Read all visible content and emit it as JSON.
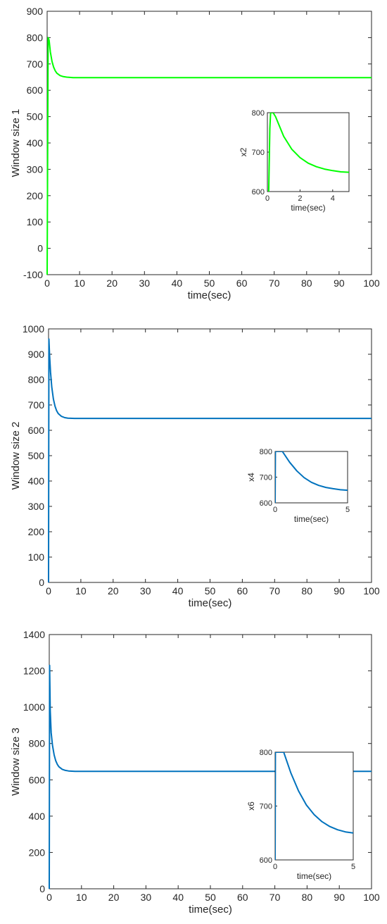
{
  "chart_data": [
    {
      "type": "line",
      "xlabel": "time(sec)",
      "ylabel": "Window size 1",
      "xlim": [
        0,
        100
      ],
      "ylim": [
        -100,
        900
      ],
      "xticks": [
        0,
        10,
        20,
        30,
        40,
        50,
        60,
        70,
        80,
        90,
        100
      ],
      "yticks": [
        -100,
        0,
        100,
        200,
        300,
        400,
        500,
        600,
        700,
        800,
        900
      ],
      "series": [
        {
          "color": "#00ff00",
          "x": [
            0,
            0.3,
            0.6,
            1,
            1.5,
            2,
            2.5,
            3,
            4,
            5,
            6,
            8,
            10,
            20,
            30,
            40,
            50,
            60,
            70,
            80,
            90,
            100
          ],
          "y": [
            -100,
            800,
            790,
            745,
            710,
            688,
            674,
            665,
            656,
            652,
            650,
            648,
            648,
            648,
            648,
            648,
            648,
            648,
            648,
            648,
            648,
            648
          ]
        }
      ],
      "inset": {
        "ylabel": "x2",
        "xlabel": "time(sec)",
        "xlim": [
          0,
          5
        ],
        "ylim": [
          600,
          800
        ],
        "xticks": [
          0,
          2,
          4
        ],
        "yticks": [
          600,
          700,
          800
        ],
        "series": [
          {
            "color": "#00ff00",
            "x": [
              0.08,
              0.15,
              0.2,
              0.35,
              0.5,
              0.75,
              1,
              1.5,
              2,
              2.5,
              3,
              3.5,
              4,
              4.5,
              5
            ],
            "y": [
              600,
              760,
              800,
              800,
              790,
              765,
              740,
              707,
              686,
              672,
              663,
              657,
              653,
              650,
              649
            ]
          }
        ]
      }
    },
    {
      "type": "line",
      "xlabel": "time(sec)",
      "ylabel": "Window size 2",
      "xlim": [
        0,
        100
      ],
      "ylim": [
        0,
        1000
      ],
      "xticks": [
        0,
        10,
        20,
        30,
        40,
        50,
        60,
        70,
        80,
        90,
        100
      ],
      "yticks": [
        0,
        100,
        200,
        300,
        400,
        500,
        600,
        700,
        800,
        900,
        1000
      ],
      "series": [
        {
          "color": "#0072bd",
          "x": [
            0,
            0.1,
            0.3,
            0.6,
            1,
            1.5,
            2,
            2.5,
            3,
            4,
            5,
            6,
            8,
            10,
            20,
            30,
            40,
            50,
            60,
            70,
            80,
            90,
            100
          ],
          "y": [
            0,
            960,
            900,
            830,
            770,
            723,
            695,
            677,
            666,
            655,
            650,
            648,
            647,
            647,
            647,
            647,
            647,
            647,
            647,
            647,
            647,
            647,
            647
          ]
        }
      ],
      "inset": {
        "ylabel": "x4",
        "xlabel": "time(sec)",
        "xlim": [
          0,
          5
        ],
        "ylim": [
          600,
          800
        ],
        "xticks": [
          0,
          5
        ],
        "yticks": [
          600,
          700,
          800
        ],
        "series": [
          {
            "color": "#0072bd",
            "x": [
              0,
              0.02,
              0.5,
              1,
              1.5,
              2,
              2.5,
              3,
              3.5,
              4,
              4.5,
              5
            ],
            "y": [
              600,
              800,
              800,
              758,
              724,
              698,
              680,
              668,
              660,
              655,
              651,
              649
            ]
          }
        ]
      }
    },
    {
      "type": "line",
      "xlabel": "time(sec)",
      "ylabel": "Window size 3",
      "xlim": [
        0,
        100
      ],
      "ylim": [
        0,
        1400
      ],
      "xticks": [
        0,
        10,
        20,
        30,
        40,
        50,
        60,
        70,
        80,
        90,
        100
      ],
      "yticks": [
        0,
        200,
        400,
        600,
        800,
        1000,
        1200,
        1400
      ],
      "series": [
        {
          "color": "#0072bd",
          "x": [
            0,
            0.1,
            0.3,
            0.6,
            1,
            1.5,
            2,
            2.5,
            3,
            4,
            5,
            6,
            8,
            10,
            20,
            30,
            40,
            50,
            60,
            70,
            80,
            90,
            100
          ],
          "y": [
            0,
            1230,
            980,
            860,
            790,
            738,
            705,
            685,
            672,
            658,
            652,
            649,
            647,
            647,
            647,
            647,
            647,
            647,
            647,
            647,
            647,
            647,
            647
          ]
        }
      ],
      "inset": {
        "ylabel": "x6",
        "xlabel": "time(sec)",
        "xlim": [
          0,
          5
        ],
        "ylim": [
          600,
          800
        ],
        "xticks": [
          0,
          5
        ],
        "yticks": [
          600,
          700,
          800
        ],
        "series": [
          {
            "color": "#0072bd",
            "x": [
              0,
              0.02,
              0.55,
              1,
              1.5,
              2,
              2.5,
              3,
              3.5,
              4,
              4.5,
              5
            ],
            "y": [
              600,
              800,
              800,
              762,
              728,
              702,
              684,
              671,
              662,
              656,
              652,
              650
            ]
          }
        ]
      }
    }
  ]
}
